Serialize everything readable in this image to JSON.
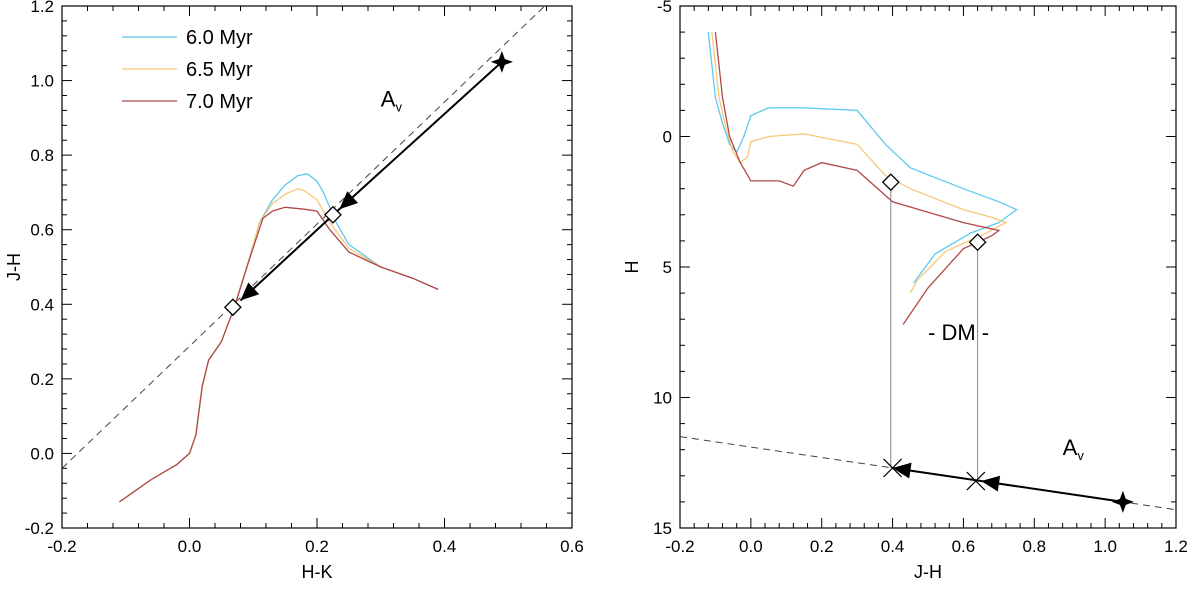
{
  "colors": {
    "6.0 Myr": "#5ec8f0",
    "6.5 Myr": "#f8c878",
    "7.0 Myr": "#b04848",
    "axes": "#000000",
    "reddening": "#000000",
    "dashed": "#444444",
    "dm": "#888888"
  },
  "chart_data": [
    {
      "type": "line",
      "xlabel": "H-K",
      "ylabel": "J-H",
      "xlim": [
        -0.2,
        0.6
      ],
      "ylim": [
        -0.2,
        1.2
      ],
      "xticks": [
        -0.2,
        0.0,
        0.2,
        0.4,
        0.6
      ],
      "xtick_labels": [
        "-0.2",
        "0.0",
        "0.2",
        "0.4",
        "0.6"
      ],
      "yticks": [
        -0.2,
        0.0,
        0.2,
        0.4,
        0.6,
        0.8,
        1.0,
        1.2
      ],
      "ytick_labels": [
        "-0.2",
        "0.0",
        "0.2",
        "0.4",
        "0.6",
        "0.8",
        "1.0",
        "1.2"
      ],
      "legend": {
        "placement": "top-left",
        "entries": [
          "6.0 Myr",
          "6.5 Myr",
          "7.0 Myr"
        ]
      },
      "series": [
        {
          "name": "6.0 Myr",
          "x": [
            -0.11,
            -0.06,
            -0.02,
            0.0,
            0.01,
            0.02,
            0.03,
            0.05,
            0.07,
            0.09,
            0.11,
            0.13,
            0.15,
            0.17,
            0.185,
            0.2,
            0.21,
            0.23,
            0.25,
            0.3,
            0.35,
            0.39
          ],
          "y": [
            -0.13,
            -0.07,
            -0.03,
            0.0,
            0.05,
            0.18,
            0.25,
            0.3,
            0.39,
            0.5,
            0.62,
            0.68,
            0.72,
            0.745,
            0.75,
            0.73,
            0.7,
            0.62,
            0.56,
            0.5,
            0.47,
            0.44
          ]
        },
        {
          "name": "6.5 Myr",
          "x": [
            -0.11,
            -0.06,
            -0.02,
            0.0,
            0.01,
            0.02,
            0.03,
            0.05,
            0.07,
            0.09,
            0.11,
            0.13,
            0.15,
            0.17,
            0.18,
            0.2,
            0.22,
            0.25,
            0.3,
            0.35,
            0.39
          ],
          "y": [
            -0.13,
            -0.07,
            -0.03,
            0.0,
            0.05,
            0.18,
            0.25,
            0.3,
            0.39,
            0.5,
            0.62,
            0.67,
            0.695,
            0.71,
            0.705,
            0.68,
            0.62,
            0.55,
            0.5,
            0.47,
            0.44
          ]
        },
        {
          "name": "7.0 Myr",
          "x": [
            -0.11,
            -0.06,
            -0.02,
            0.0,
            0.01,
            0.02,
            0.03,
            0.05,
            0.07,
            0.09,
            0.115,
            0.13,
            0.15,
            0.18,
            0.2,
            0.22,
            0.25,
            0.3,
            0.35,
            0.39
          ],
          "y": [
            -0.13,
            -0.07,
            -0.03,
            0.0,
            0.05,
            0.18,
            0.25,
            0.3,
            0.39,
            0.5,
            0.63,
            0.65,
            0.66,
            0.655,
            0.65,
            0.6,
            0.54,
            0.5,
            0.47,
            0.44
          ]
        }
      ],
      "reddening_line": {
        "x": [
          -0.2,
          0.6
        ],
        "y": [
          -0.04,
          1.27
        ]
      },
      "reddening_vectors": [
        {
          "from": [
            0.49,
            1.05
          ],
          "to": [
            0.235,
            0.655
          ]
        },
        {
          "from": [
            0.235,
            0.655
          ],
          "to": [
            0.08,
            0.41
          ]
        }
      ],
      "diamonds": [
        {
          "x": 0.225,
          "y": 0.64
        },
        {
          "x": 0.068,
          "y": 0.392
        }
      ],
      "filled_stars": [
        {
          "x": 0.49,
          "y": 1.05
        }
      ],
      "annotations": [
        {
          "text": "A",
          "subscript": "v",
          "x": 0.3,
          "y": 0.93
        }
      ]
    },
    {
      "type": "line",
      "xlabel": "J-H",
      "ylabel": "H",
      "xlim": [
        -0.2,
        1.2
      ],
      "ylim": [
        15,
        -5
      ],
      "xticks": [
        -0.2,
        0.0,
        0.2,
        0.4,
        0.6,
        0.8,
        1.0,
        1.2
      ],
      "xtick_labels": [
        "-0.2",
        "0.0",
        "0.2",
        "0.4",
        "0.6",
        "0.8",
        "1.0",
        "1.2"
      ],
      "yticks": [
        -5,
        0,
        5,
        10,
        15
      ],
      "ytick_labels": [
        "-5",
        "0",
        "5",
        "10",
        "15"
      ],
      "series": [
        {
          "name": "6.0 Myr",
          "x": [
            -0.12,
            -0.1,
            -0.08,
            -0.06,
            -0.04,
            -0.02,
            0.0,
            0.05,
            0.15,
            0.3,
            0.38,
            0.45,
            0.6,
            0.7,
            0.75,
            0.7,
            0.62,
            0.52,
            0.46
          ],
          "y": [
            -4.0,
            -1.5,
            -0.5,
            0.3,
            0.6,
            0.0,
            -0.8,
            -1.1,
            -1.1,
            -1.0,
            0.3,
            1.2,
            2.0,
            2.5,
            2.8,
            3.3,
            3.7,
            4.5,
            5.6
          ]
        },
        {
          "name": "6.5 Myr",
          "x": [
            -0.11,
            -0.09,
            -0.07,
            -0.05,
            -0.03,
            -0.01,
            0.0,
            0.05,
            0.15,
            0.3,
            0.38,
            0.45,
            0.6,
            0.68,
            0.72,
            0.65,
            0.55,
            0.47,
            0.45
          ],
          "y": [
            -4.0,
            -1.5,
            -0.3,
            0.6,
            1.0,
            0.8,
            0.2,
            0.0,
            -0.1,
            0.3,
            1.5,
            2.0,
            2.8,
            3.1,
            3.3,
            3.8,
            4.4,
            5.5,
            6.0
          ]
        },
        {
          "name": "7.0 Myr",
          "x": [
            -0.1,
            -0.08,
            -0.06,
            -0.03,
            0.0,
            0.08,
            0.12,
            0.15,
            0.2,
            0.3,
            0.4,
            0.5,
            0.6,
            0.7,
            0.68,
            0.6,
            0.5,
            0.43
          ],
          "y": [
            -4.0,
            -1.5,
            0.0,
            1.0,
            1.7,
            1.7,
            1.9,
            1.3,
            1.0,
            1.3,
            2.5,
            2.9,
            3.3,
            3.6,
            3.8,
            4.3,
            5.8,
            7.2
          ]
        }
      ],
      "reddening_line": {
        "x": [
          -0.2,
          1.2
        ],
        "y": [
          11.5,
          14.3
        ]
      },
      "reddening_vectors": [
        {
          "from": [
            1.05,
            14.0
          ],
          "to": [
            0.65,
            13.2
          ]
        },
        {
          "from": [
            0.65,
            13.2
          ],
          "to": [
            0.4,
            12.7
          ]
        }
      ],
      "dm_lines": [
        {
          "x": 0.395,
          "y": [
            1.7,
            12.7
          ]
        },
        {
          "x": 0.64,
          "y": [
            4.0,
            13.2
          ]
        }
      ],
      "diamonds": [
        {
          "x": 0.395,
          "y": 1.75
        },
        {
          "x": 0.64,
          "y": 4.05
        }
      ],
      "crosses": [
        {
          "x": 0.4,
          "y": 12.7
        },
        {
          "x": 0.635,
          "y": 13.2
        }
      ],
      "filled_stars": [
        {
          "x": 1.05,
          "y": 14.0
        }
      ],
      "annotations": [
        {
          "text": "- DM -",
          "subscript": "",
          "x": 0.5,
          "y": 7.8
        },
        {
          "text": "A",
          "subscript": "v",
          "x": 0.88,
          "y": 12.2
        }
      ]
    }
  ]
}
